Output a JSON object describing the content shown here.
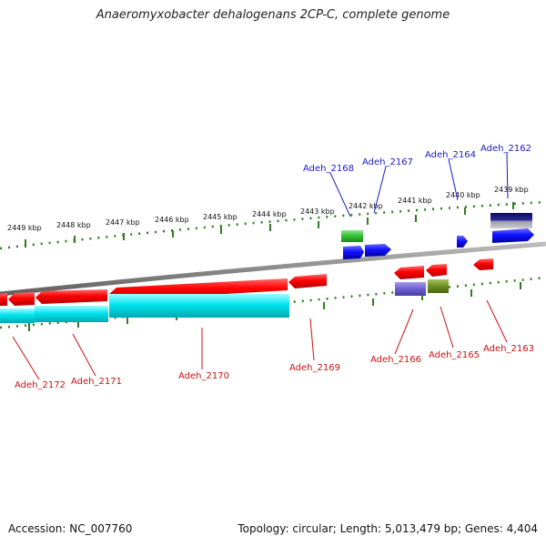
{
  "header": {
    "title": "Anaeromyxobacter dehalogenans 2CP-C, complete genome"
  },
  "footer": {
    "accession": "Accession: NC_007760",
    "summary": "Topology: circular; Length: 5,013,479 bp; Genes: 4,404"
  },
  "ticks": [
    "2449 kbp",
    "2448 kbp",
    "2447 kbp",
    "2446 kbp",
    "2445 kbp",
    "2444 kbp",
    "2443 kbp",
    "2442 kbp",
    "2441 kbp",
    "2440 kbp",
    "2439 kbp"
  ],
  "labels_top": [
    "Adeh_2168",
    "Adeh_2167",
    "Adeh_2164",
    "Adeh_2162"
  ],
  "labels_bottom": [
    "Adeh_2172",
    "Adeh_2171",
    "Adeh_2170",
    "Adeh_2169",
    "Adeh_2166",
    "Adeh_2165",
    "Adeh_2163"
  ],
  "colors": {
    "backbone": "#888888",
    "tick": "#2e7d1e",
    "forward": "#1a1aff",
    "reverse": "#ff0000",
    "cds": "#00e5ee",
    "green": "#33bb33",
    "purple": "#6f5fd0",
    "olive": "#6b8e23",
    "navy": "#0a0a6e",
    "label_top": "#1a1acc",
    "label_bottom": "#cc1111"
  }
}
